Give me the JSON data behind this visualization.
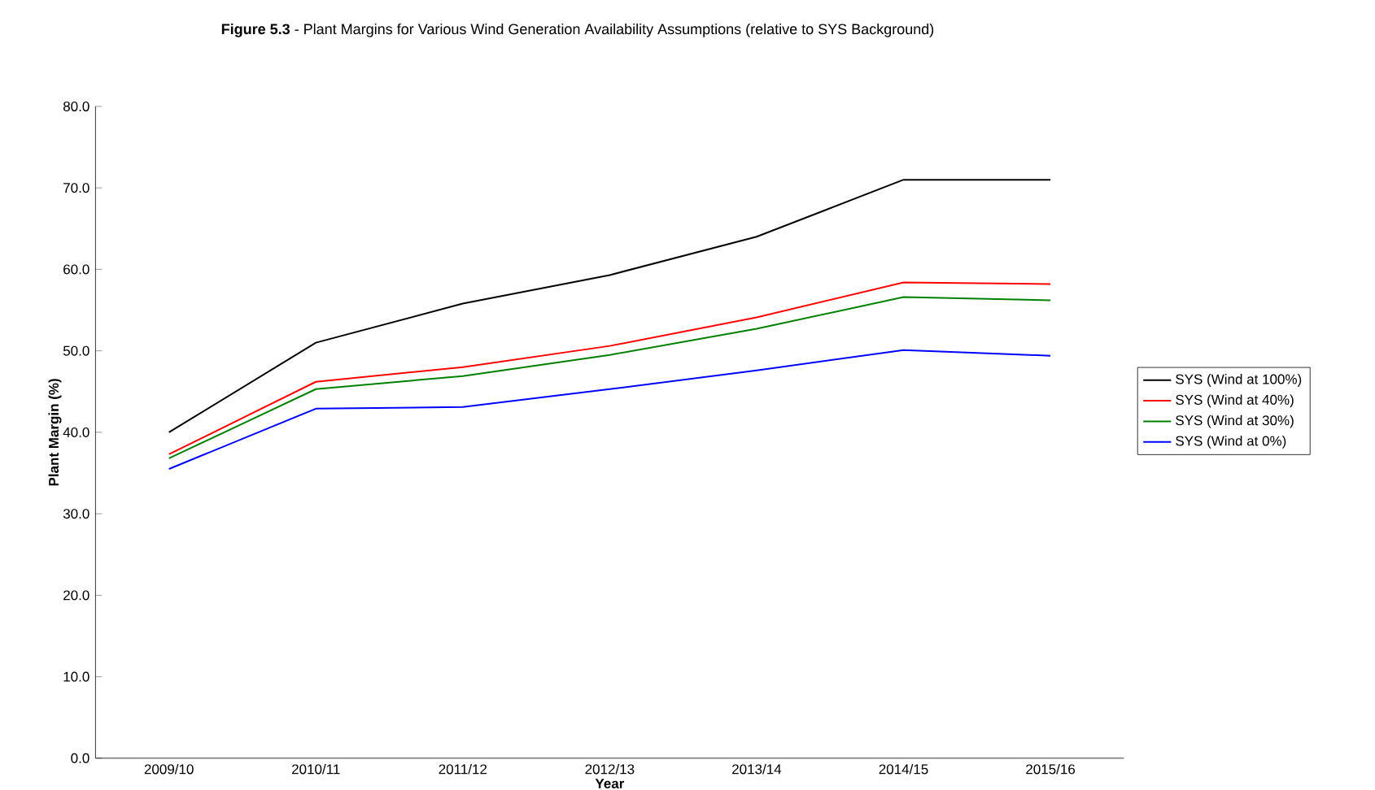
{
  "chart_data": {
    "type": "line",
    "title": "**Figure 5.3** - Plant Margins for Various Wind Generation Availability Assumptions (relative to SYS Background)",
    "xlabel": "Year",
    "ylabel": "Plant Margin (%)",
    "categories": [
      "2009/10",
      "2010/11",
      "2011/12",
      "2012/13",
      "2013/14",
      "2014/15",
      "2015/16"
    ],
    "series": [
      {
        "name": "SYS (Wind at 100%)",
        "color": "#000000",
        "values": [
          40.0,
          51.0,
          55.8,
          59.3,
          64.0,
          71.0,
          71.0
        ]
      },
      {
        "name": "SYS (Wind at 40%)",
        "color": "#ff0000",
        "values": [
          37.3,
          46.2,
          48.0,
          50.6,
          54.1,
          58.4,
          58.2
        ]
      },
      {
        "name": "SYS (Wind at 30%)",
        "color": "#008000",
        "values": [
          36.8,
          45.3,
          46.9,
          49.5,
          52.7,
          56.6,
          56.2
        ]
      },
      {
        "name": "SYS (Wind at 0%)",
        "color": "#0000ff",
        "values": [
          35.5,
          42.9,
          43.1,
          45.3,
          47.6,
          50.1,
          49.4
        ]
      }
    ],
    "ylim": [
      0,
      80
    ],
    "yticks": [
      {
        "value": 0,
        "label": "0.0"
      },
      {
        "value": 10,
        "label": "10.0"
      },
      {
        "value": 20,
        "label": "20.0"
      },
      {
        "value": 30,
        "label": "30.0"
      },
      {
        "value": 40,
        "label": "40.0"
      },
      {
        "value": 50,
        "label": "50.0"
      },
      {
        "value": 60,
        "label": "60.0"
      },
      {
        "value": 70,
        "label": "70.0"
      },
      {
        "value": 80,
        "label": "80.0"
      }
    ],
    "grid": false,
    "legend": "right",
    "marker": "none",
    "line_style": "solid"
  }
}
